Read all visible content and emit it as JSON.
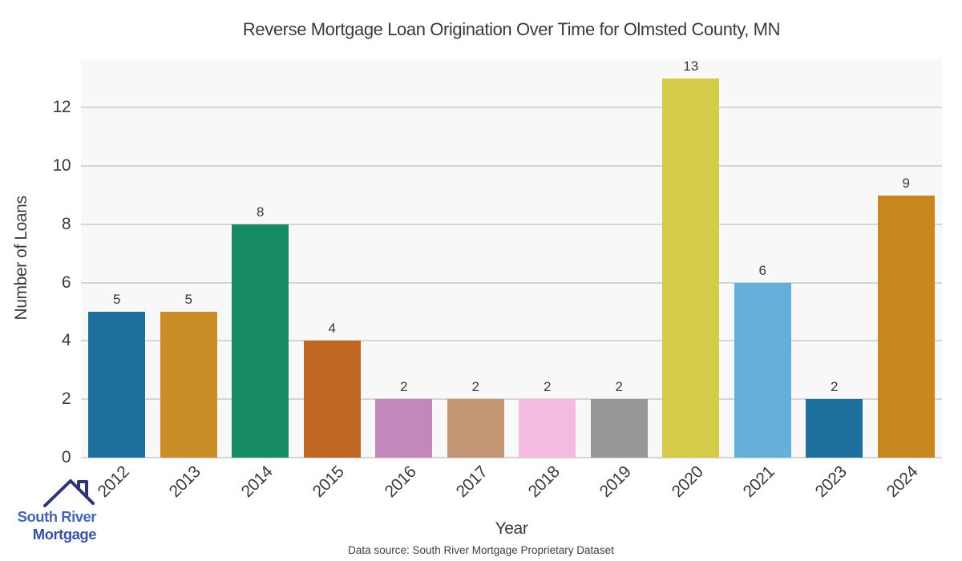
{
  "title": "Reverse Mortgage Loan Origination Over Time for Olmsted County, MN",
  "chart_data": {
    "type": "bar",
    "categories": [
      "2012",
      "2013",
      "2014",
      "2015",
      "2016",
      "2017",
      "2018",
      "2019",
      "2020",
      "2021",
      "2023",
      "2024"
    ],
    "values": [
      5,
      5,
      8,
      4,
      2,
      2,
      2,
      2,
      13,
      6,
      2,
      9
    ],
    "bar_colors": [
      "#1e6f9e",
      "#c98e27",
      "#178a66",
      "#bf6722",
      "#c288bc",
      "#c29674",
      "#f2bbdf",
      "#979797",
      "#d4cb49",
      "#64b0d9",
      "#1e6f9e",
      "#c8871e"
    ],
    "title": "Reverse Mortgage Loan Origination Over Time for Olmsted County, MN",
    "xlabel": "Year",
    "ylabel": "Number of Loans",
    "yticks": [
      0,
      2,
      4,
      6,
      8,
      10,
      12
    ],
    "ylim": [
      0,
      13.66
    ],
    "grid": "horizontal",
    "legend": "none",
    "plot_bg": "#f8f8f8",
    "grid_color": "#d5d5d5"
  },
  "footer": {
    "source_note": "Data source: South River Mortgage Proprietary Dataset"
  },
  "logo": {
    "line1": "South River",
    "line2": "Mortgage",
    "line1_color": "#4767b2",
    "line2_color": "#3a52a5",
    "roof_color": "#2b3572"
  }
}
